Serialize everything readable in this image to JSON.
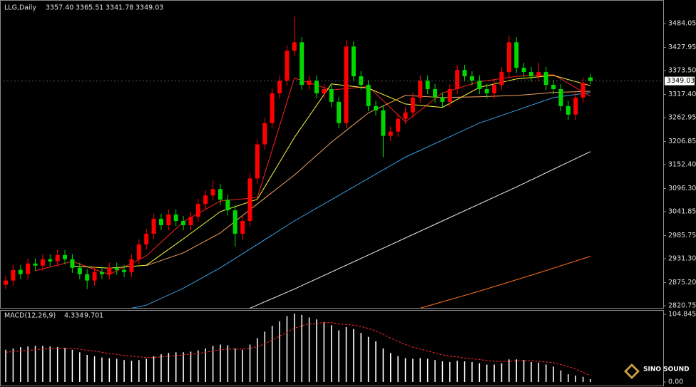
{
  "chart_data": [
    {
      "type": "candlestick",
      "title": "LLG,Daily",
      "ohlc_labels": [
        "3357.40",
        "3365.51",
        "3341.78",
        "3349.03"
      ],
      "open": [
        2870,
        2880,
        2905,
        2895,
        2920,
        2915,
        2930,
        2925,
        2940,
        2930,
        2910,
        2895,
        2880,
        2900,
        2895,
        2910,
        2905,
        2900,
        2930,
        2965,
        2990,
        3025,
        3010,
        3035,
        3020,
        3010,
        3030,
        3060,
        3080,
        3095,
        3070,
        3045,
        2990,
        3020,
        3120,
        3200,
        3250,
        3320,
        3350,
        3420,
        3440,
        3340,
        3350,
        3320,
        3330,
        3300,
        3250,
        3430,
        3360,
        3340,
        3290,
        3280,
        3220,
        3230,
        3260,
        3275,
        3310,
        3350,
        3330,
        3310,
        3300,
        3330,
        3375,
        3360,
        3350,
        3330,
        3320,
        3340,
        3370,
        3440,
        3380,
        3370,
        3360,
        3370,
        3340,
        3330,
        3290,
        3270,
        3310,
        3357.4
      ],
      "high": [
        2892,
        2917,
        2917,
        2932,
        2932,
        2942,
        2942,
        2952,
        2952,
        2942,
        2922,
        2907,
        2912,
        2912,
        2922,
        2922,
        2917,
        2942,
        2977,
        3002,
        3037,
        3037,
        3047,
        3047,
        3032,
        3042,
        3072,
        3092,
        3115,
        3107,
        3082,
        3057,
        3032,
        3132,
        3212,
        3262,
        3332,
        3362,
        3432,
        3500,
        3452,
        3362,
        3362,
        3342,
        3342,
        3312,
        3445,
        3442,
        3372,
        3352,
        3302,
        3292,
        3242,
        3272,
        3287,
        3322,
        3362,
        3362,
        3342,
        3322,
        3342,
        3387,
        3387,
        3372,
        3362,
        3342,
        3352,
        3382,
        3455,
        3452,
        3392,
        3382,
        3392,
        3382,
        3352,
        3342,
        3302,
        3322,
        3357,
        3365.51
      ],
      "low": [
        2860,
        2868,
        2883,
        2883,
        2903,
        2903,
        2913,
        2913,
        2918,
        2898,
        2883,
        2860,
        2868,
        2883,
        2883,
        2893,
        2888,
        2888,
        2918,
        2953,
        2978,
        2998,
        2998,
        3008,
        2998,
        2998,
        3018,
        3048,
        3068,
        3058,
        3033,
        2960,
        2975,
        3008,
        3108,
        3188,
        3238,
        3308,
        3338,
        3408,
        3328,
        3328,
        3308,
        3308,
        3288,
        3238,
        3238,
        3348,
        3328,
        3278,
        3268,
        3170,
        3208,
        3218,
        3248,
        3263,
        3298,
        3318,
        3298,
        3288,
        3288,
        3318,
        3348,
        3338,
        3318,
        3308,
        3308,
        3328,
        3358,
        3368,
        3358,
        3348,
        3348,
        3328,
        3318,
        3278,
        3258,
        3258,
        3298,
        3341.78
      ],
      "close": [
        2880,
        2905,
        2895,
        2920,
        2915,
        2930,
        2925,
        2940,
        2930,
        2910,
        2895,
        2880,
        2900,
        2895,
        2910,
        2905,
        2900,
        2930,
        2965,
        2990,
        3025,
        3010,
        3035,
        3020,
        3010,
        3030,
        3060,
        3080,
        3095,
        3070,
        3045,
        2990,
        3020,
        3120,
        3200,
        3250,
        3320,
        3350,
        3420,
        3440,
        3340,
        3350,
        3320,
        3330,
        3300,
        3250,
        3430,
        3360,
        3340,
        3290,
        3280,
        3220,
        3230,
        3260,
        3275,
        3310,
        3350,
        3330,
        3310,
        3300,
        3330,
        3375,
        3360,
        3350,
        3330,
        3320,
        3340,
        3370,
        3440,
        3380,
        3370,
        3360,
        3370,
        3340,
        3330,
        3290,
        3270,
        3310,
        3345,
        3349.03
      ],
      "up_color": "#ff0000",
      "down_color": "#00d800",
      "lines": [
        {
          "color": "#ff2020",
          "x": [
            4,
            9,
            14,
            19,
            24,
            29,
            34,
            39,
            44,
            49,
            54,
            59,
            64,
            69,
            74,
            79
          ],
          "values": [
            2903,
            2925,
            2894,
            2938,
            3018,
            3067,
            3075,
            3356,
            3328,
            3336,
            3253,
            3321,
            3347,
            3360,
            3364,
            3313
          ]
        },
        {
          "color": "#ffff40",
          "x": [
            9,
            14,
            19,
            24,
            29,
            34,
            39,
            44,
            49,
            54,
            59,
            64,
            69,
            74,
            79
          ],
          "values": [
            2914,
            2909,
            2916,
            2978,
            3042,
            3071,
            3216,
            3342,
            3332,
            3295,
            3287,
            3334,
            3354,
            3362,
            3338
          ]
        },
        {
          "color": "#f0a060",
          "x": [
            19,
            24,
            29,
            34,
            39,
            44,
            49,
            54,
            59,
            64,
            69,
            74,
            79
          ],
          "values": [
            2915,
            2945,
            2992,
            3060,
            3128,
            3205,
            3274,
            3315,
            3310,
            3312,
            3315,
            3322,
            3325
          ]
        },
        {
          "color": "#3aa0e8",
          "x": [
            17,
            19,
            24,
            29,
            34,
            39,
            44,
            49,
            54,
            59,
            64,
            69,
            74,
            79
          ],
          "values": [
            2815,
            2822,
            2862,
            2910,
            2965,
            3020,
            3070,
            3120,
            3170,
            3210,
            3250,
            3280,
            3310,
            3322
          ]
        },
        {
          "color": "#f0f0f0",
          "x": [
            33,
            39,
            49,
            59,
            69,
            79
          ],
          "values": [
            2815,
            2860,
            2940,
            3020,
            3100,
            3183
          ]
        },
        {
          "color": "#ff7020",
          "x": [
            56,
            64,
            72,
            79
          ],
          "values": [
            2815,
            2855,
            2898,
            2937
          ]
        }
      ],
      "ylim": [
        2815.7,
        3531
      ],
      "yticks": [
        3484.05,
        3427.95,
        {
          "value": 3373.5,
          "label": "3373.50"
        },
        {
          "value": 3317.4,
          "label": "3317.40"
        },
        3262.95,
        3206.85,
        {
          "value": 3152.4,
          "label": "3152.40"
        },
        {
          "value": 3096.3,
          "label": "3096.30"
        },
        3041.85,
        2985.75,
        {
          "value": 2931.3,
          "label": "2931.30"
        },
        {
          "value": 2875.2,
          "label": "2875.20"
        },
        2820.75
      ]
    },
    {
      "type": "macd",
      "title": "MACD(12,26,9)",
      "histogram": [
        50,
        52,
        54,
        55,
        56,
        56,
        55,
        54,
        53,
        50,
        46,
        42,
        40,
        38,
        37,
        36,
        34,
        33,
        34,
        36,
        40,
        43,
        45,
        46,
        46,
        47,
        49,
        52,
        56,
        58,
        57,
        52,
        50,
        58,
        68,
        78,
        87,
        94,
        102,
        106,
        104,
        100,
        97,
        93,
        88,
        80,
        85,
        82,
        76,
        70,
        63,
        52,
        45,
        40,
        37,
        36,
        37,
        36,
        34,
        32,
        31,
        33,
        32,
        31,
        29,
        27,
        27,
        29,
        35,
        35,
        34,
        31,
        30,
        27,
        24,
        18,
        12,
        10,
        8,
        4.334
      ],
      "signal": [
        46,
        47,
        48,
        49,
        50,
        51,
        52,
        52,
        52,
        52,
        51,
        49,
        48,
        46,
        44,
        43,
        41,
        40,
        39,
        38,
        38,
        39,
        40,
        41,
        42,
        43,
        44,
        46,
        48,
        50,
        51,
        51,
        51,
        52,
        55,
        59,
        65,
        71,
        77,
        83,
        87,
        90,
        91,
        92,
        92,
        90,
        89,
        88,
        86,
        83,
        79,
        74,
        68,
        63,
        58,
        54,
        51,
        48,
        45,
        42,
        40,
        39,
        37,
        36,
        35,
        33,
        32,
        32,
        32,
        33,
        33,
        33,
        32,
        31,
        30,
        27,
        24,
        20,
        15,
        9.701
      ],
      "hist_color": "#ffffff",
      "signal_color": "#ff2a2a",
      "ylim": [
        -4.4,
        110.4
      ],
      "yticks": [
        104.845,
        {
          "value": 0,
          "label": "0.00"
        }
      ]
    },
    {
      "type": "logo",
      "title": "SINO SOUND"
    }
  ]
}
